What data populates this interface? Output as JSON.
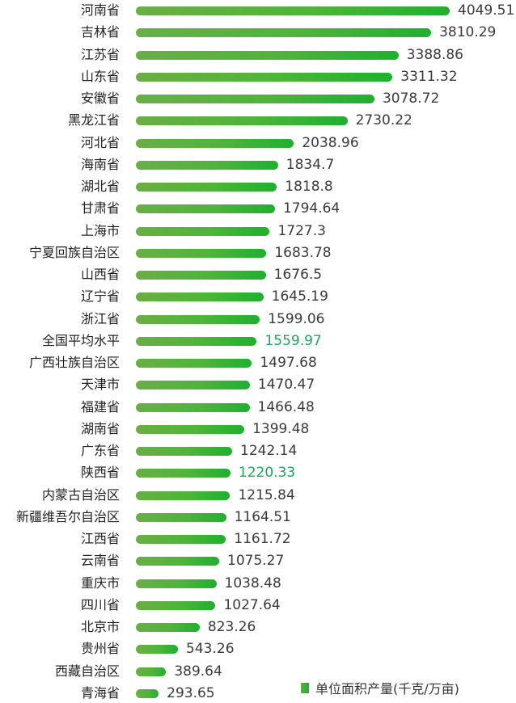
{
  "chart_data": {
    "type": "bar",
    "orientation": "horizontal",
    "title": "",
    "xlabel": "",
    "ylabel": "",
    "grid": false,
    "legend_position": "bottom-right",
    "series": [
      {
        "name": "单位面积产量(千克/万亩)",
        "color": "#3fb23a"
      }
    ],
    "categories": [
      "河南省",
      "吉林省",
      "江苏省",
      "山东省",
      "安徽省",
      "黑龙江省",
      "河北省",
      "海南省",
      "湖北省",
      "甘肃省",
      "上海市",
      "宁夏回族自治区",
      "山西省",
      "辽宁省",
      "浙江省",
      "全国平均水平",
      "广西壮族自治区",
      "天津市",
      "福建省",
      "湖南省",
      "广东省",
      "陕西省",
      "内蒙古自治区",
      "新疆维吾尔自治区",
      "江西省",
      "云南省",
      "重庆市",
      "四川省",
      "北京市",
      "贵州省",
      "西藏自治区",
      "青海省"
    ],
    "values": [
      4049.51,
      3810.29,
      3388.86,
      3311.32,
      3078.72,
      2730.22,
      2038.96,
      1834.7,
      1818.8,
      1794.64,
      1727.3,
      1683.78,
      1676.5,
      1645.19,
      1599.06,
      1559.97,
      1497.68,
      1470.47,
      1466.48,
      1399.48,
      1242.14,
      1220.33,
      1215.84,
      1164.51,
      1161.72,
      1075.27,
      1038.48,
      1027.64,
      823.26,
      543.26,
      389.64,
      293.65
    ],
    "value_labels": [
      "4049.51",
      "3810.29",
      "3388.86",
      "3311.32",
      "3078.72",
      "2730.22",
      "2038.96",
      "1834.7",
      "1818.8",
      "1794.64",
      "1727.3",
      "1683.78",
      "1676.5",
      "1645.19",
      "1599.06",
      "1559.97",
      "1497.68",
      "1470.47",
      "1466.48",
      "1399.48",
      "1242.14",
      "1220.33",
      "1215.84",
      "1164.51",
      "1161.72",
      "1075.27",
      "1038.48",
      "1027.64",
      "823.26",
      "543.26",
      "389.64",
      "293.65"
    ],
    "highlighted": [
      "全国平均水平",
      "陕西省"
    ],
    "highlight_color": "#1aaa5a",
    "xlim": [
      0,
      4049.51
    ]
  },
  "legend": {
    "label": "单位面积产量(千克/万亩)",
    "color": "#3fb23a"
  }
}
